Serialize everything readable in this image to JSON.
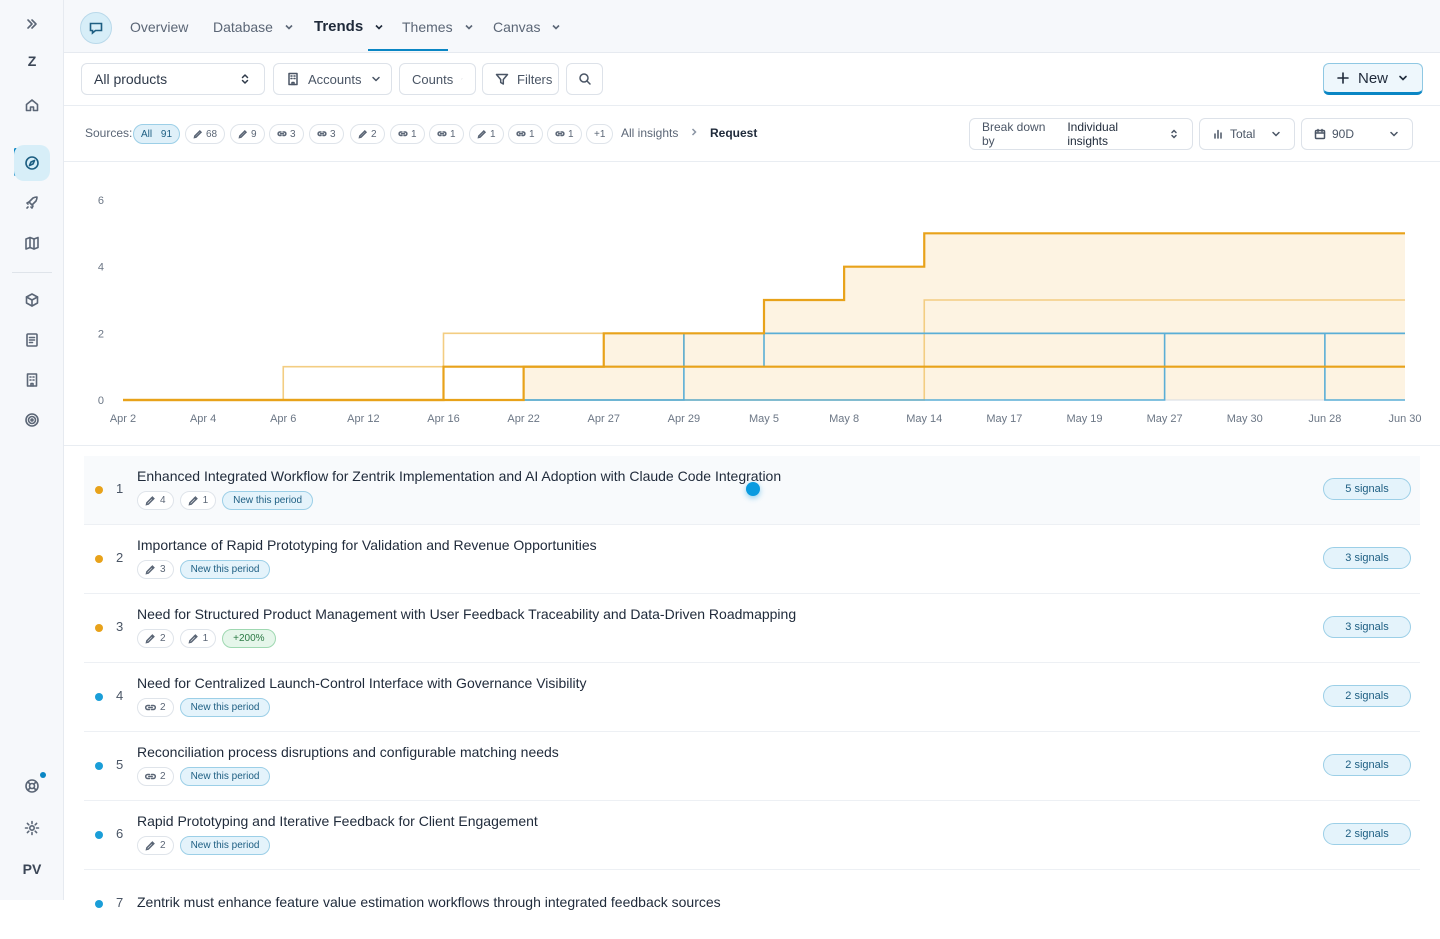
{
  "rail": {
    "workspace_letter": "Z",
    "user_initials": "PV"
  },
  "nav": {
    "tabs": [
      {
        "label": "Overview"
      },
      {
        "label": "Database"
      },
      {
        "label": "Trends"
      },
      {
        "label": "Themes"
      },
      {
        "label": "Canvas"
      }
    ],
    "active_tab": "Trends"
  },
  "toolbar": {
    "product_select": "All products",
    "accounts_label": "Accounts",
    "counts_label": "Counts",
    "filters_label": "Filters",
    "new_label": "New"
  },
  "sources": {
    "label": "Sources:",
    "chips": [
      {
        "icon": "all",
        "label": "All",
        "count": "91"
      },
      {
        "icon": "pencil-icon",
        "count": "68"
      },
      {
        "icon": "pencil-icon",
        "count": "9"
      },
      {
        "icon": "link-icon",
        "count": "3"
      },
      {
        "icon": "link-icon",
        "count": "3"
      },
      {
        "icon": "pencil-icon",
        "count": "2"
      },
      {
        "icon": "link-icon",
        "count": "1"
      },
      {
        "icon": "link-icon",
        "count": "1"
      },
      {
        "icon": "pencil-icon",
        "count": "1"
      },
      {
        "icon": "link-icon",
        "count": "1"
      },
      {
        "icon": "link-icon",
        "count": "1"
      },
      {
        "icon": "none",
        "count": "+1"
      }
    ],
    "breadcrumb_root": "All insights",
    "breadcrumb_current": "Request",
    "breakdown_prefix": "Break down by",
    "breakdown_value": "Individual insights",
    "total_label": "Total",
    "range_label": "90D"
  },
  "chart_data": {
    "type": "line",
    "step": true,
    "grid": false,
    "categories": [
      "Apr 2",
      "Apr 4",
      "Apr 6",
      "Apr 12",
      "Apr 16",
      "Apr 22",
      "Apr 27",
      "Apr 29",
      "May 5",
      "May 8",
      "May 14",
      "May 17",
      "May 19",
      "May 27",
      "May 30",
      "Jun 28",
      "Jun 30"
    ],
    "ylim": [
      0,
      6
    ],
    "yticks": [
      0,
      2,
      4,
      6
    ],
    "colors": {
      "dark_orange": "#e8a21a",
      "light_orange": "#f3cd82",
      "dark_blue": "#5aaed6",
      "fill": "#fdf3e2"
    },
    "series": [
      {
        "style": "dark_orange",
        "values": [
          0,
          0,
          0,
          0,
          0,
          1,
          2,
          2,
          3,
          4,
          5,
          5,
          5,
          5,
          5,
          5,
          5
        ]
      },
      {
        "style": "light_orange",
        "values": [
          0,
          0,
          1,
          1,
          2,
          2,
          2,
          1,
          1,
          1,
          1,
          1,
          1,
          1,
          1,
          1,
          1
        ]
      },
      {
        "style": "light_orange",
        "values": [
          0,
          0,
          0,
          0,
          0,
          0,
          0,
          0,
          0,
          0,
          3,
          3,
          3,
          3,
          3,
          3,
          3
        ]
      },
      {
        "style": "dark_orange",
        "values": [
          0,
          0,
          0,
          0,
          1,
          1,
          1,
          1,
          1,
          1,
          1,
          1,
          1,
          1,
          1,
          1,
          1
        ]
      },
      {
        "style": "dark_blue",
        "values": [
          0,
          0,
          0,
          0,
          0,
          1,
          1,
          2,
          2,
          2,
          2,
          2,
          2,
          2,
          2,
          2,
          2
        ]
      },
      {
        "style": "dark_blue",
        "values": [
          0,
          0,
          0,
          0,
          0,
          0,
          0,
          1,
          2,
          2,
          2,
          2,
          2,
          2,
          2,
          0,
          0
        ]
      },
      {
        "style": "dark_blue",
        "values": [
          0,
          0,
          0,
          0,
          0,
          0,
          0,
          0,
          0,
          0,
          0,
          0,
          0,
          2,
          2,
          2,
          2
        ]
      }
    ]
  },
  "insights": [
    {
      "rank": "1",
      "dot": "#e8a21a",
      "title": "Enhanced Integrated Workflow for Zentrik Implementation and AI Adoption with Claude Code Integration",
      "tags": [
        {
          "icon": "pencil-icon",
          "count": "4"
        },
        {
          "icon": "pencil-icon",
          "count": "1"
        }
      ],
      "badge": "New this period",
      "badge_type": "new",
      "signals": "5 signals",
      "highlight": true
    },
    {
      "rank": "2",
      "dot": "#e8a21a",
      "title": "Importance of Rapid Prototyping for Validation and Revenue Opportunities",
      "tags": [
        {
          "icon": "pencil-icon",
          "count": "3"
        }
      ],
      "badge": "New this period",
      "badge_type": "new",
      "signals": "3 signals"
    },
    {
      "rank": "3",
      "dot": "#e8a21a",
      "title": "Need for Structured Product Management with User Feedback Traceability and Data-Driven Roadmapping",
      "tags": [
        {
          "icon": "pencil-icon",
          "count": "2"
        },
        {
          "icon": "pencil-icon",
          "count": "1"
        }
      ],
      "badge": "+200%",
      "badge_type": "up",
      "signals": "3 signals"
    },
    {
      "rank": "4",
      "dot": "#1a9ed8",
      "title": "Need for Centralized Launch-Control Interface with Governance Visibility",
      "tags": [
        {
          "icon": "link-icon",
          "count": "2"
        }
      ],
      "badge": "New this period",
      "badge_type": "new",
      "signals": "2 signals"
    },
    {
      "rank": "5",
      "dot": "#1a9ed8",
      "title": "Reconciliation process disruptions and configurable matching needs",
      "tags": [
        {
          "icon": "link-icon",
          "count": "2"
        }
      ],
      "badge": "New this period",
      "badge_type": "new",
      "signals": "2 signals"
    },
    {
      "rank": "6",
      "dot": "#1a9ed8",
      "title": "Rapid Prototyping and Iterative Feedback for Client Engagement",
      "tags": [
        {
          "icon": "pencil-icon",
          "count": "2"
        }
      ],
      "badge": "New this period",
      "badge_type": "new",
      "signals": "2 signals"
    },
    {
      "rank": "7",
      "dot": "#1a9ed8",
      "title": "Zentrik must enhance feature value estimation workflows through integrated feedback sources",
      "tags": [],
      "badge": "",
      "badge_type": "new",
      "signals": ""
    }
  ]
}
